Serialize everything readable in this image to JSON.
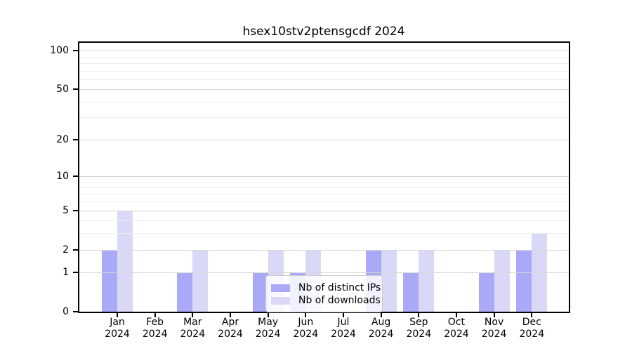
{
  "chart_data": {
    "type": "bar",
    "title": "hsex10stv2ptensgcdf 2024",
    "categories": [
      "Jan",
      "Feb",
      "Mar",
      "Apr",
      "May",
      "Jun",
      "Jul",
      "Aug",
      "Sep",
      "Oct",
      "Nov",
      "Dec"
    ],
    "category_year": "2024",
    "series": [
      {
        "name": "Nb of distinct IPs",
        "color": "#a9a9f7",
        "values": [
          2,
          0,
          1,
          0,
          1,
          1,
          0,
          2,
          1,
          0,
          1,
          2
        ]
      },
      {
        "name": "Nb of downloads",
        "color": "#d9d9f7",
        "values": [
          5,
          0,
          2,
          0,
          2,
          2,
          0,
          2,
          2,
          0,
          2,
          3
        ]
      }
    ],
    "yscale": "log1p",
    "ylim": [
      0,
      115
    ],
    "yticks": [
      0,
      1,
      2,
      5,
      10,
      20,
      50,
      100
    ],
    "yticks_minor": [
      3,
      4,
      6,
      7,
      8,
      9,
      30,
      40,
      60,
      70,
      80,
      90
    ],
    "grid": "horizontal, drawn above bars",
    "legend_position": "inside bottom-center-left",
    "axis_color": "#000000"
  }
}
